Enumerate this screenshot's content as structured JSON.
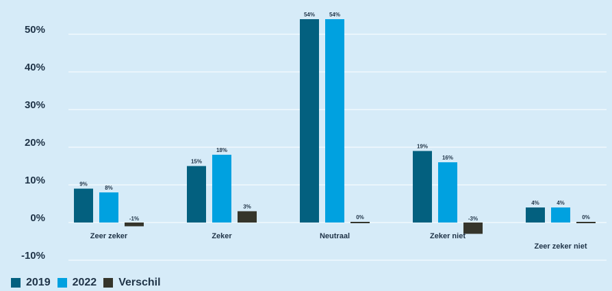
{
  "chart_data": {
    "type": "bar",
    "categories": [
      "Zeer zeker",
      "Zeker",
      "Neutraal",
      "Zeker niet",
      "Zeer zeker niet"
    ],
    "series": [
      {
        "name": "2019",
        "values": [
          9,
          15,
          54,
          19,
          4
        ],
        "labels": [
          "9%",
          "15%",
          "54%",
          "19%",
          "4%"
        ],
        "color": "#03607f"
      },
      {
        "name": "2022",
        "values": [
          8,
          18,
          54,
          16,
          4
        ],
        "labels": [
          "8%",
          "18%",
          "54%",
          "16%",
          "4%"
        ],
        "color": "#00a1e0"
      },
      {
        "name": "Verschil",
        "values": [
          -1,
          3,
          0,
          -3,
          0
        ],
        "labels": [
          "-1%",
          "3%",
          "0%",
          "-3%",
          "0%"
        ],
        "color": "#35352b"
      }
    ],
    "ylim": [
      -10,
      50
    ],
    "yticks": [
      -10,
      0,
      10,
      20,
      30,
      40,
      50
    ],
    "ytick_labels": [
      "-10%",
      "0%",
      "10%",
      "20%",
      "30%",
      "40%",
      "50%"
    ],
    "grid": true,
    "legend_position": "bottom-left"
  }
}
